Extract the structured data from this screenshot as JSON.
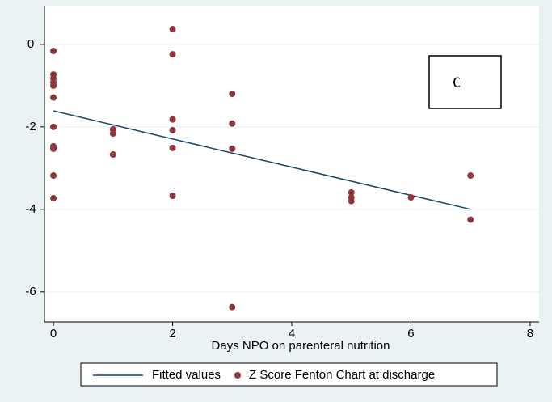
{
  "chart_data": {
    "type": "scatter",
    "x_label": "Days NPO on parenteral nutrition",
    "annotation": "C",
    "xlim": [
      -0.15,
      8.15
    ],
    "xticks": [
      0,
      2,
      4,
      6,
      8
    ],
    "ylim": [
      -6.73,
      0.92
    ],
    "yticks": [
      0,
      -2,
      -4,
      -6
    ],
    "grid": true,
    "legend": "bottom",
    "series": [
      {
        "name": "Fitted values",
        "mode": "line",
        "color": "#1a476f",
        "x": [
          0,
          7
        ],
        "values": [
          -1.61,
          -4.0
        ]
      },
      {
        "name": "Z Score Fenton Chart at discharge",
        "mode": "markers",
        "color": "#90353b",
        "x": [
          0,
          0,
          0,
          0,
          0,
          0,
          0,
          0,
          0,
          0,
          0,
          1,
          1,
          1,
          2,
          2,
          2,
          2,
          2,
          2,
          3,
          3,
          3,
          3,
          5,
          5,
          5,
          6,
          7,
          7
        ],
        "values": [
          -0.16,
          -0.73,
          -0.82,
          -0.92,
          -1.0,
          -1.29,
          -2.0,
          -2.47,
          -2.53,
          -3.18,
          -3.73,
          -2.06,
          -2.16,
          -2.67,
          0.37,
          -0.24,
          -1.82,
          -2.08,
          -2.51,
          -3.67,
          -1.2,
          -1.92,
          -2.53,
          -6.37,
          -3.59,
          -3.71,
          -3.8,
          -3.71,
          -3.18,
          -4.25
        ]
      }
    ]
  }
}
